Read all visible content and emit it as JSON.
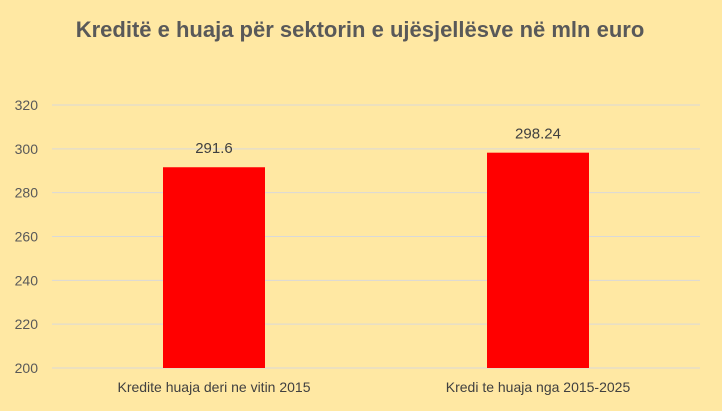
{
  "chart_data": {
    "type": "bar",
    "title": "Kreditë e huaja për sektorin e ujësjellësve në mln euro",
    "categories": [
      "Kredite huaja deri ne vitin 2015",
      "Kredi te huaja nga 2015-2025"
    ],
    "values": [
      291.6,
      298.24
    ],
    "data_labels": [
      "291.6",
      "298.24"
    ],
    "xlabel": "",
    "ylabel": "",
    "ylim": [
      200,
      320
    ],
    "yticks": [
      "200",
      "220",
      "240",
      "260",
      "280",
      "300",
      "320"
    ],
    "grid": true,
    "legend": "none",
    "colors": {
      "bar": "#FF0000",
      "background": "#FFE8A3",
      "grid": "#D9D9D9"
    }
  }
}
